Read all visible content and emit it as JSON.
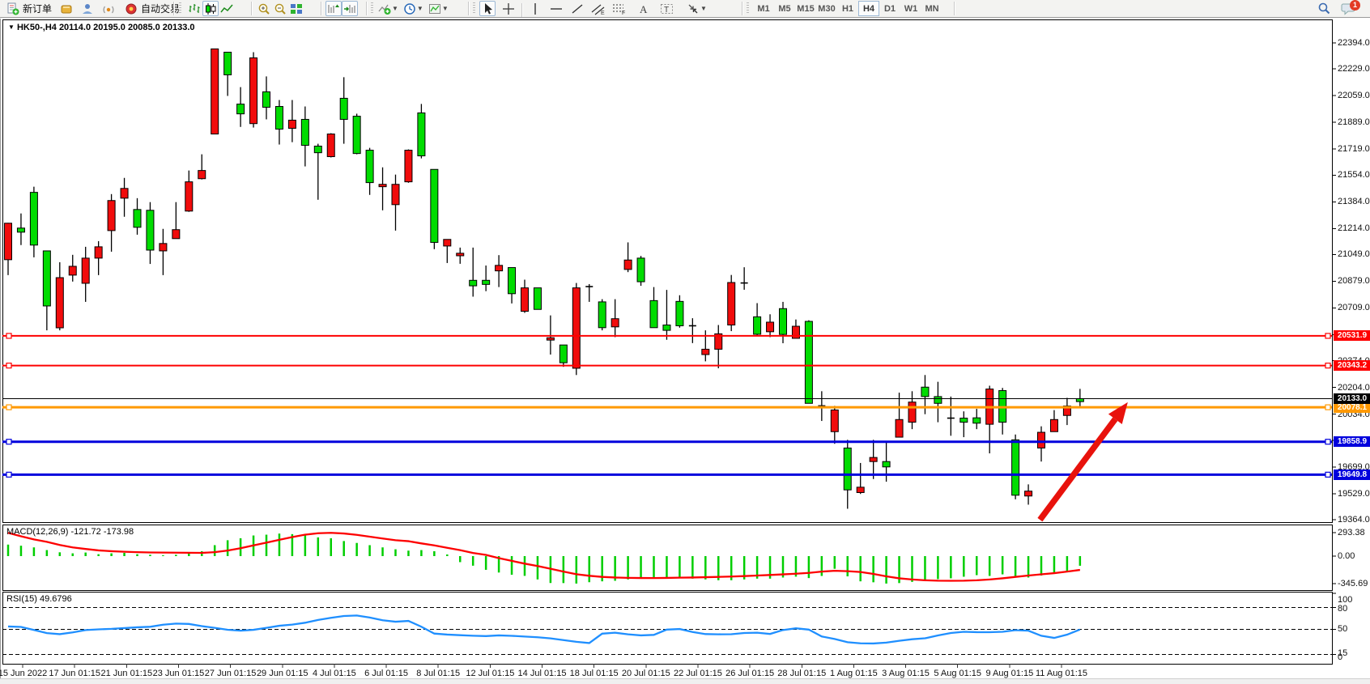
{
  "toolbar": {
    "new_order_label": "新订单",
    "autotrading_label": "自动交易",
    "timeframes": [
      "M1",
      "M5",
      "M15",
      "M30",
      "H1",
      "H4",
      "D1",
      "W1",
      "MN"
    ],
    "active_timeframe": "H4",
    "notification_count": "1",
    "icons": [
      "new-order",
      "quotes",
      "profile",
      "signals",
      "autotrading",
      "bars-chart",
      "candles-chart",
      "line-chart",
      "zoom-in",
      "zoom-out",
      "tile-windows",
      "chart-shift",
      "auto-scroll",
      "indicators",
      "periods",
      "templates",
      "cursor",
      "crosshair",
      "vertical-line",
      "horizontal-line",
      "trendline",
      "equidistant-channel",
      "fibonacci",
      "text",
      "text-label",
      "arrows",
      "search",
      "notifications"
    ]
  },
  "chart_data": {
    "type": "candlestick",
    "title": "HK50-,H4",
    "ohlc_display": "20114.0 20195.0 20085.0 20133.0",
    "symbol": "HK50-",
    "timeframe": "H4",
    "open": 20114.0,
    "high": 20195.0,
    "low": 20085.0,
    "close": 20133.0,
    "y_ticks": [
      "22394.0",
      "22229.0",
      "22059.0",
      "21889.0",
      "21719.0",
      "21554.0",
      "21384.0",
      "21214.0",
      "21049.0",
      "20879.0",
      "20709.0",
      "20539.0",
      "20374.0",
      "20204.0",
      "20034.0",
      "19869.0",
      "19699.0",
      "19529.0",
      "19364.0"
    ],
    "x_labels": [
      "15 Jun 2022",
      "17 Jun 01:15",
      "21 Jun 01:15",
      "23 Jun 01:15",
      "27 Jun 01:15",
      "29 Jun 01:15",
      "4 Jul 01:15",
      "6 Jul 01:15",
      "8 Jul 01:15",
      "12 Jul 01:15",
      "14 Jul 01:15",
      "18 Jul 01:15",
      "20 Jul 01:15",
      "22 Jul 01:15",
      "26 Jul 01:15",
      "28 Jul 01:15",
      "1 Aug 01:15",
      "3 Aug 01:15",
      "5 Aug 01:15",
      "9 Aug 01:15",
      "11 Aug 01:15"
    ],
    "candles": [
      [
        21248,
        21250,
        20918,
        21016
      ],
      [
        21191,
        21310,
        21109,
        21217
      ],
      [
        21109,
        21480,
        21031,
        21444
      ],
      [
        20722,
        21072,
        20567,
        21072
      ],
      [
        20902,
        21000,
        20567,
        20583
      ],
      [
        20974,
        21047,
        20877,
        20918
      ],
      [
        21026,
        21098,
        20748,
        20866
      ],
      [
        21098,
        21134,
        20918,
        21026
      ],
      [
        21392,
        21433,
        21067,
        21201
      ],
      [
        21469,
        21536,
        21289,
        21407
      ],
      [
        21222,
        21407,
        21175,
        21335
      ],
      [
        21077,
        21382,
        20989,
        21330
      ],
      [
        21119,
        21212,
        20918,
        21072
      ],
      [
        21207,
        21382,
        21150,
        21150
      ],
      [
        21511,
        21583,
        21320,
        21325
      ],
      [
        21583,
        21686,
        21526,
        21531
      ],
      [
        22356,
        22356,
        21815,
        21815
      ],
      [
        22191,
        22335,
        22057,
        22335
      ],
      [
        21943,
        22113,
        21860,
        22005
      ],
      [
        22299,
        22335,
        21856,
        21881
      ],
      [
        21985,
        22181,
        21908,
        22083
      ],
      [
        21846,
        22031,
        21748,
        21990
      ],
      [
        21903,
        22031,
        21763,
        21851
      ],
      [
        21743,
        21990,
        21609,
        21908
      ],
      [
        21696,
        21753,
        21397,
        21738
      ],
      [
        21815,
        21820,
        21666,
        21671
      ],
      [
        21908,
        22176,
        21753,
        22042
      ],
      [
        21691,
        21944,
        21686,
        21928
      ],
      [
        21506,
        21727,
        21428,
        21712
      ],
      [
        21495,
        21603,
        21330,
        21480
      ],
      [
        21495,
        21557,
        21201,
        21366
      ],
      [
        21712,
        21717,
        21505,
        21511
      ],
      [
        21676,
        22006,
        21660,
        21949
      ],
      [
        21126,
        21590,
        21083,
        21590
      ],
      [
        21145,
        21145,
        20995,
        21103
      ],
      [
        21057,
        21093,
        20990,
        21041
      ],
      [
        20850,
        21093,
        20781,
        20885
      ],
      [
        20859,
        20979,
        20816,
        20885
      ],
      [
        20980,
        21045,
        20842,
        20945
      ],
      [
        20800,
        20966,
        20738,
        20966
      ],
      [
        20837,
        20889,
        20678,
        20688
      ],
      [
        20700,
        20837,
        20700,
        20837
      ],
      [
        20520,
        20662,
        20413,
        20505
      ],
      [
        20361,
        20474,
        20335,
        20474
      ],
      [
        20837,
        20868,
        20283,
        20326
      ],
      [
        20845,
        20861,
        20748,
        20838
      ],
      [
        20584,
        20765,
        20567,
        20748
      ],
      [
        20641,
        20765,
        20524,
        20589
      ],
      [
        21014,
        21126,
        20937,
        20954
      ],
      [
        20876,
        21040,
        20850,
        21026
      ],
      [
        20584,
        20842,
        20584,
        20756
      ],
      [
        20567,
        20824,
        20507,
        20601
      ],
      [
        20596,
        20790,
        20584,
        20751
      ],
      [
        20596,
        20644,
        20486,
        20587
      ],
      [
        20447,
        20567,
        20370,
        20413
      ],
      [
        20545,
        20601,
        20326,
        20447
      ],
      [
        20871,
        20919,
        20562,
        20601
      ],
      [
        20868,
        20968,
        20825,
        20861
      ],
      [
        20542,
        20740,
        20533,
        20653
      ],
      [
        20619,
        20669,
        20524,
        20558
      ],
      [
        20541,
        20748,
        20485,
        20705
      ],
      [
        20593,
        20636,
        20516,
        20516
      ],
      [
        20103,
        20631,
        20103,
        20624
      ],
      [
        20087,
        20180,
        19991,
        20082
      ],
      [
        20061,
        20087,
        19846,
        19923
      ],
      [
        19553,
        19871,
        19433,
        19819
      ],
      [
        19570,
        19724,
        19527,
        19536
      ],
      [
        19759,
        19871,
        19622,
        19733
      ],
      [
        19699,
        19854,
        19605,
        19733
      ],
      [
        20000,
        20171,
        19888,
        19888
      ],
      [
        20111,
        20180,
        19939,
        19983
      ],
      [
        20146,
        20283,
        20034,
        20206
      ],
      [
        20103,
        20240,
        19983,
        20146
      ],
      [
        20009,
        20146,
        19897,
        20000
      ],
      [
        19983,
        20052,
        19888,
        20009
      ],
      [
        19977,
        20068,
        19939,
        20011
      ],
      [
        20194,
        20215,
        19785,
        19970
      ],
      [
        19983,
        20201,
        19905,
        20184
      ],
      [
        19519,
        19905,
        19493,
        19871
      ],
      [
        19545,
        19588,
        19459,
        19514
      ],
      [
        19919,
        19957,
        19733,
        19819
      ],
      [
        20000,
        20060,
        19923,
        19923
      ],
      [
        20086,
        20138,
        19965,
        20026
      ],
      [
        20114,
        20195,
        20085,
        20133
      ]
    ],
    "levels": [
      {
        "value": 20531.9,
        "tag": "20531.9",
        "color": "#fe0000",
        "width": 2
      },
      {
        "value": 20343.2,
        "tag": "20343.2",
        "color": "#fe0000",
        "width": 2
      },
      {
        "value": 20078.1,
        "tag": "20078.1",
        "color": "#ff9900",
        "width": 3
      },
      {
        "value": 19858.9,
        "tag": "19858.9",
        "color": "#0000dd",
        "width": 3
      },
      {
        "value": 19649.8,
        "tag": "19649.8",
        "color": "#0000dd",
        "width": 3
      }
    ],
    "current_price": {
      "value": 20133.0,
      "tag": "20133.0",
      "color": "#000000"
    },
    "arrow": {
      "x1_bar": 79.9,
      "y1_price": 19363,
      "x2_bar": 86.7,
      "y2_price": 20110,
      "color": "#e8120c"
    },
    "macd": {
      "label": "MACD(12,26,9)",
      "values_text": "-121.72 -173.98",
      "axis_labels": [
        "293.38",
        "0.00",
        "-345.69"
      ],
      "histogram": [
        145,
        131,
        110,
        76,
        48,
        35,
        45,
        24,
        35,
        41,
        24,
        17,
        10,
        17,
        35,
        62,
        138,
        200,
        225,
        260,
        270,
        284,
        277,
        260,
        236,
        225,
        190,
        166,
        138,
        110,
        86,
        69,
        76,
        62,
        21,
        -76,
        -121,
        -173,
        -207,
        -235,
        -249,
        -294,
        -339,
        -340,
        -346,
        -329,
        -318,
        -311,
        -294,
        -284,
        -284,
        -284,
        -277,
        -284,
        -294,
        -304,
        -304,
        -294,
        -284,
        -284,
        -270,
        -259,
        -277,
        -250,
        -160,
        -255,
        -318,
        -330,
        -346,
        -340,
        -325,
        -300,
        -290,
        -280,
        -260,
        -240,
        -250,
        -230,
        -260,
        -270,
        -245,
        -220,
        -190,
        -121.72
      ],
      "signal": [
        293,
        250,
        210,
        180,
        140,
        110,
        90,
        72,
        62,
        55,
        50,
        46,
        45,
        43,
        42,
        41,
        50,
        70,
        100,
        135,
        170,
        205,
        240,
        270,
        288,
        293,
        285,
        268,
        245,
        222,
        200,
        188,
        160,
        135,
        105,
        75,
        40,
        15,
        -25,
        -60,
        -95,
        -125,
        -160,
        -195,
        -228,
        -248,
        -262,
        -270,
        -274,
        -276,
        -277,
        -275,
        -272,
        -270,
        -266,
        -262,
        -258,
        -252,
        -245,
        -238,
        -230,
        -222,
        -212,
        -195,
        -185,
        -190,
        -200,
        -225,
        -255,
        -280,
        -295,
        -305,
        -310,
        -311,
        -310,
        -305,
        -295,
        -280,
        -262,
        -245,
        -230,
        -215,
        -195,
        -173.98
      ]
    },
    "rsi": {
      "label": "RSI(15)",
      "value_text": "49.6796",
      "axis_labels": [
        "100",
        "80",
        "50",
        "15",
        "0"
      ],
      "level_lines": [
        80,
        50,
        15
      ],
      "series": [
        53.8,
        53.2,
        49,
        44.6,
        43.2,
        45.6,
        48.9,
        49.8,
        50.5,
        51.6,
        52.7,
        53.4,
        56.3,
        57.8,
        57.3,
        54.3,
        51.9,
        49.3,
        48,
        49.2,
        51.9,
        54.8,
        56.4,
        59,
        62.9,
        65.8,
        68.3,
        69,
        66.2,
        62.4,
        60.4,
        61.5,
        53.5,
        44,
        42.6,
        41.8,
        41,
        40.5,
        41.5,
        40.9,
        39.9,
        38.9,
        37.4,
        35,
        32.6,
        30.9,
        43.9,
        45.2,
        43,
        41.5,
        42.2,
        49.5,
        50.3,
        46.2,
        43.3,
        43,
        43.1,
        44.8,
        45.2,
        43.5,
        48.9,
        51.3,
        49.5,
        40,
        36.5,
        32,
        30.5,
        30.3,
        31.5,
        34,
        36.2,
        37.5,
        41.5,
        44.8,
        46.5,
        46,
        45.9,
        46.5,
        48.7,
        48,
        41,
        38,
        42.5,
        49.68
      ],
      "colors": {
        "line": "#1f8fff"
      }
    },
    "colors": {
      "bull": "#00dc00",
      "bear": "#f10c0c",
      "wick": "#000000",
      "macd_hist": "#00ce00",
      "macd_signal": "#fd0000"
    }
  }
}
